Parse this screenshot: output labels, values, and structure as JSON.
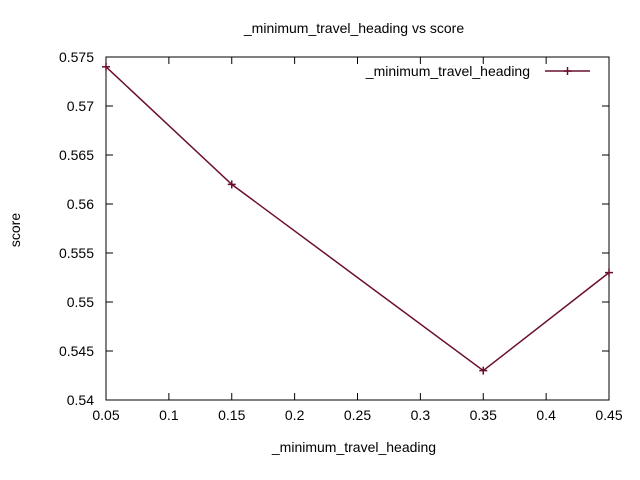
{
  "chart_data": {
    "type": "line",
    "title": "_minimum_travel_heading vs score",
    "xlabel": "_minimum_travel_heading",
    "ylabel": "score",
    "xlim": [
      0.05,
      0.45
    ],
    "ylim": [
      0.54,
      0.575
    ],
    "xticks": [
      "0.05",
      "0.1",
      "0.15",
      "0.2",
      "0.25",
      "0.3",
      "0.35",
      "0.4",
      "0.45"
    ],
    "yticks": [
      "0.54",
      "0.545",
      "0.55",
      "0.555",
      "0.56",
      "0.565",
      "0.57",
      "0.575"
    ],
    "grid": false,
    "legend_position": "top-right",
    "series": [
      {
        "name": "_minimum_travel_heading",
        "color": "#6b0f2e",
        "marker": "plus",
        "x": [
          0.05,
          0.15,
          0.35,
          0.45
        ],
        "y": [
          0.574,
          0.562,
          0.543,
          0.553
        ]
      }
    ]
  }
}
